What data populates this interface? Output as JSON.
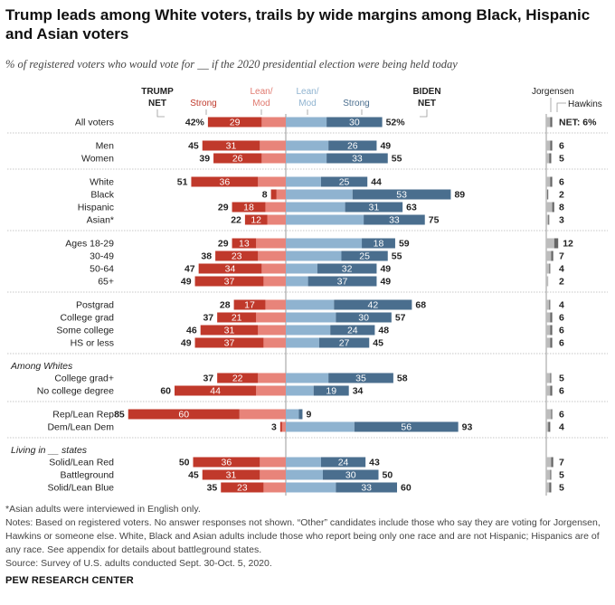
{
  "title": "Trump leads among White voters, trails by wide margins among Black, Hispanic and Asian voters",
  "subtitle": "% of registered voters who would vote for __ if the 2020 presidential election were being held today",
  "headers": {
    "trump_net_1": "TRUMP",
    "trump_net_2": "NET",
    "strong_left": "Strong",
    "leanmod_left_1": "Lean/",
    "leanmod_left_2": "Mod",
    "leanmod_right_1": "Lean/",
    "leanmod_right_2": "Mod",
    "strong_right": "Strong",
    "biden_net_1": "BIDEN",
    "biden_net_2": "NET",
    "jorgensen": "Jorgensen",
    "hawkins": "Hawkins",
    "net_prefix": "NET:"
  },
  "colors": {
    "trump_strong": "#c0392b",
    "trump_lean": "#e8847a",
    "biden_lean": "#8fb3d0",
    "biden_strong": "#4a6e8e",
    "jorgensen": "#bdbdbd",
    "hawkins": "#666666"
  },
  "chart_data": {
    "type": "bar",
    "orientation": "diverging-horizontal",
    "series": [
      {
        "name": "Trump Strong"
      },
      {
        "name": "Trump Lean/Mod"
      },
      {
        "name": "Biden Lean/Mod"
      },
      {
        "name": "Biden Strong"
      },
      {
        "name": "Jorgensen"
      },
      {
        "name": "Hawkins"
      }
    ],
    "groups": [
      {
        "label": "",
        "rows": [
          {
            "label": "All voters",
            "trump_net": 42,
            "trump_strong": 29,
            "biden_strong": 30,
            "biden_net": 52,
            "other": 6,
            "jorgensen": 4,
            "hawkins": 2,
            "net_pct": true
          }
        ]
      },
      {
        "label": "",
        "rows": [
          {
            "label": "Men",
            "trump_net": 45,
            "trump_strong": 31,
            "biden_strong": 26,
            "biden_net": 49,
            "other": 6,
            "jorgensen": 4,
            "hawkins": 2
          },
          {
            "label": "Women",
            "trump_net": 39,
            "trump_strong": 26,
            "biden_strong": 33,
            "biden_net": 55,
            "other": 5,
            "jorgensen": 3,
            "hawkins": 2
          }
        ]
      },
      {
        "label": "",
        "rows": [
          {
            "label": "White",
            "trump_net": 51,
            "trump_strong": 36,
            "biden_strong": 25,
            "biden_net": 44,
            "other": 6,
            "jorgensen": 4,
            "hawkins": 2
          },
          {
            "label": "Black",
            "trump_net": 8,
            "trump_strong": 3,
            "biden_strong": 53,
            "biden_net": 89,
            "other": 2,
            "jorgensen": 1,
            "hawkins": 1
          },
          {
            "label": "Hispanic",
            "trump_net": 29,
            "trump_strong": 18,
            "biden_strong": 31,
            "biden_net": 63,
            "other": 8,
            "jorgensen": 6,
            "hawkins": 2
          },
          {
            "label": "Asian*",
            "trump_net": 22,
            "trump_strong": 12,
            "biden_strong": 33,
            "biden_net": 75,
            "other": 3,
            "jorgensen": 2,
            "hawkins": 1
          }
        ]
      },
      {
        "label": "",
        "rows": [
          {
            "label": "Ages 18-29",
            "trump_net": 29,
            "trump_strong": 13,
            "biden_strong": 18,
            "biden_net": 59,
            "other": 12,
            "jorgensen": 8,
            "hawkins": 4
          },
          {
            "label": "30-49",
            "trump_net": 38,
            "trump_strong": 23,
            "biden_strong": 25,
            "biden_net": 55,
            "other": 7,
            "jorgensen": 5,
            "hawkins": 2
          },
          {
            "label": "50-64",
            "trump_net": 47,
            "trump_strong": 34,
            "biden_strong": 32,
            "biden_net": 49,
            "other": 4,
            "jorgensen": 3,
            "hawkins": 1
          },
          {
            "label": "65+",
            "trump_net": 49,
            "trump_strong": 37,
            "biden_strong": 37,
            "biden_net": 49,
            "other": 2,
            "jorgensen": 2,
            "hawkins": 0
          }
        ]
      },
      {
        "label": "",
        "rows": [
          {
            "label": "Postgrad",
            "trump_net": 28,
            "trump_strong": 17,
            "biden_strong": 42,
            "biden_net": 68,
            "other": 4,
            "jorgensen": 3,
            "hawkins": 1
          },
          {
            "label": "College grad",
            "trump_net": 37,
            "trump_strong": 21,
            "biden_strong": 30,
            "biden_net": 57,
            "other": 6,
            "jorgensen": 4,
            "hawkins": 2
          },
          {
            "label": "Some college",
            "trump_net": 46,
            "trump_strong": 31,
            "biden_strong": 24,
            "biden_net": 48,
            "other": 6,
            "jorgensen": 4,
            "hawkins": 2
          },
          {
            "label": "HS or less",
            "trump_net": 49,
            "trump_strong": 37,
            "biden_strong": 27,
            "biden_net": 45,
            "other": 6,
            "jorgensen": 4,
            "hawkins": 2
          }
        ]
      },
      {
        "label": "Among Whites",
        "rows": [
          {
            "label": "College grad+",
            "trump_net": 37,
            "trump_strong": 22,
            "biden_strong": 35,
            "biden_net": 58,
            "other": 5,
            "jorgensen": 4,
            "hawkins": 1
          },
          {
            "label": "No college degree",
            "trump_net": 60,
            "trump_strong": 44,
            "biden_strong": 19,
            "biden_net": 34,
            "other": 6,
            "jorgensen": 4,
            "hawkins": 2
          }
        ]
      },
      {
        "label": "",
        "rows": [
          {
            "label": "Rep/Lean Rep",
            "trump_net": 85,
            "trump_strong": 60,
            "biden_strong": 2,
            "biden_net": 9,
            "other": 6,
            "jorgensen": 5,
            "hawkins": 1
          },
          {
            "label": "Dem/Lean Dem",
            "trump_net": 3,
            "trump_strong": 1,
            "biden_strong": 56,
            "biden_net": 93,
            "other": 4,
            "jorgensen": 2,
            "hawkins": 2
          }
        ]
      },
      {
        "label": "Living in __ states",
        "rows": [
          {
            "label": "Solid/Lean Red",
            "trump_net": 50,
            "trump_strong": 36,
            "biden_strong": 24,
            "biden_net": 43,
            "other": 7,
            "jorgensen": 5,
            "hawkins": 2
          },
          {
            "label": "Battleground",
            "trump_net": 45,
            "trump_strong": 31,
            "biden_strong": 30,
            "biden_net": 50,
            "other": 5,
            "jorgensen": 4,
            "hawkins": 1
          },
          {
            "label": "Solid/Lean Blue",
            "trump_net": 35,
            "trump_strong": 23,
            "biden_strong": 33,
            "biden_net": 60,
            "other": 5,
            "jorgensen": 3,
            "hawkins": 2
          }
        ]
      }
    ],
    "hidden_values": [
      "trump_strong:Black=3",
      "biden_strong:Rep/Lean Rep=2",
      "trump_strong:Dem/Lean Dem=1"
    ]
  },
  "notes": [
    "*Asian adults were interviewed in English only.",
    "Notes: Based on registered voters. No answer responses not shown. “Other” candidates include those who say they are voting for Jorgensen, Hawkins or someone else. White, Black and Asian adults include those who report being only one race and are not Hispanic; Hispanics are of any race. See appendix for details about battleground states.",
    "Source: Survey of U.S. adults conducted Sept. 30-Oct. 5, 2020."
  ],
  "brand": "PEW RESEARCH CENTER"
}
